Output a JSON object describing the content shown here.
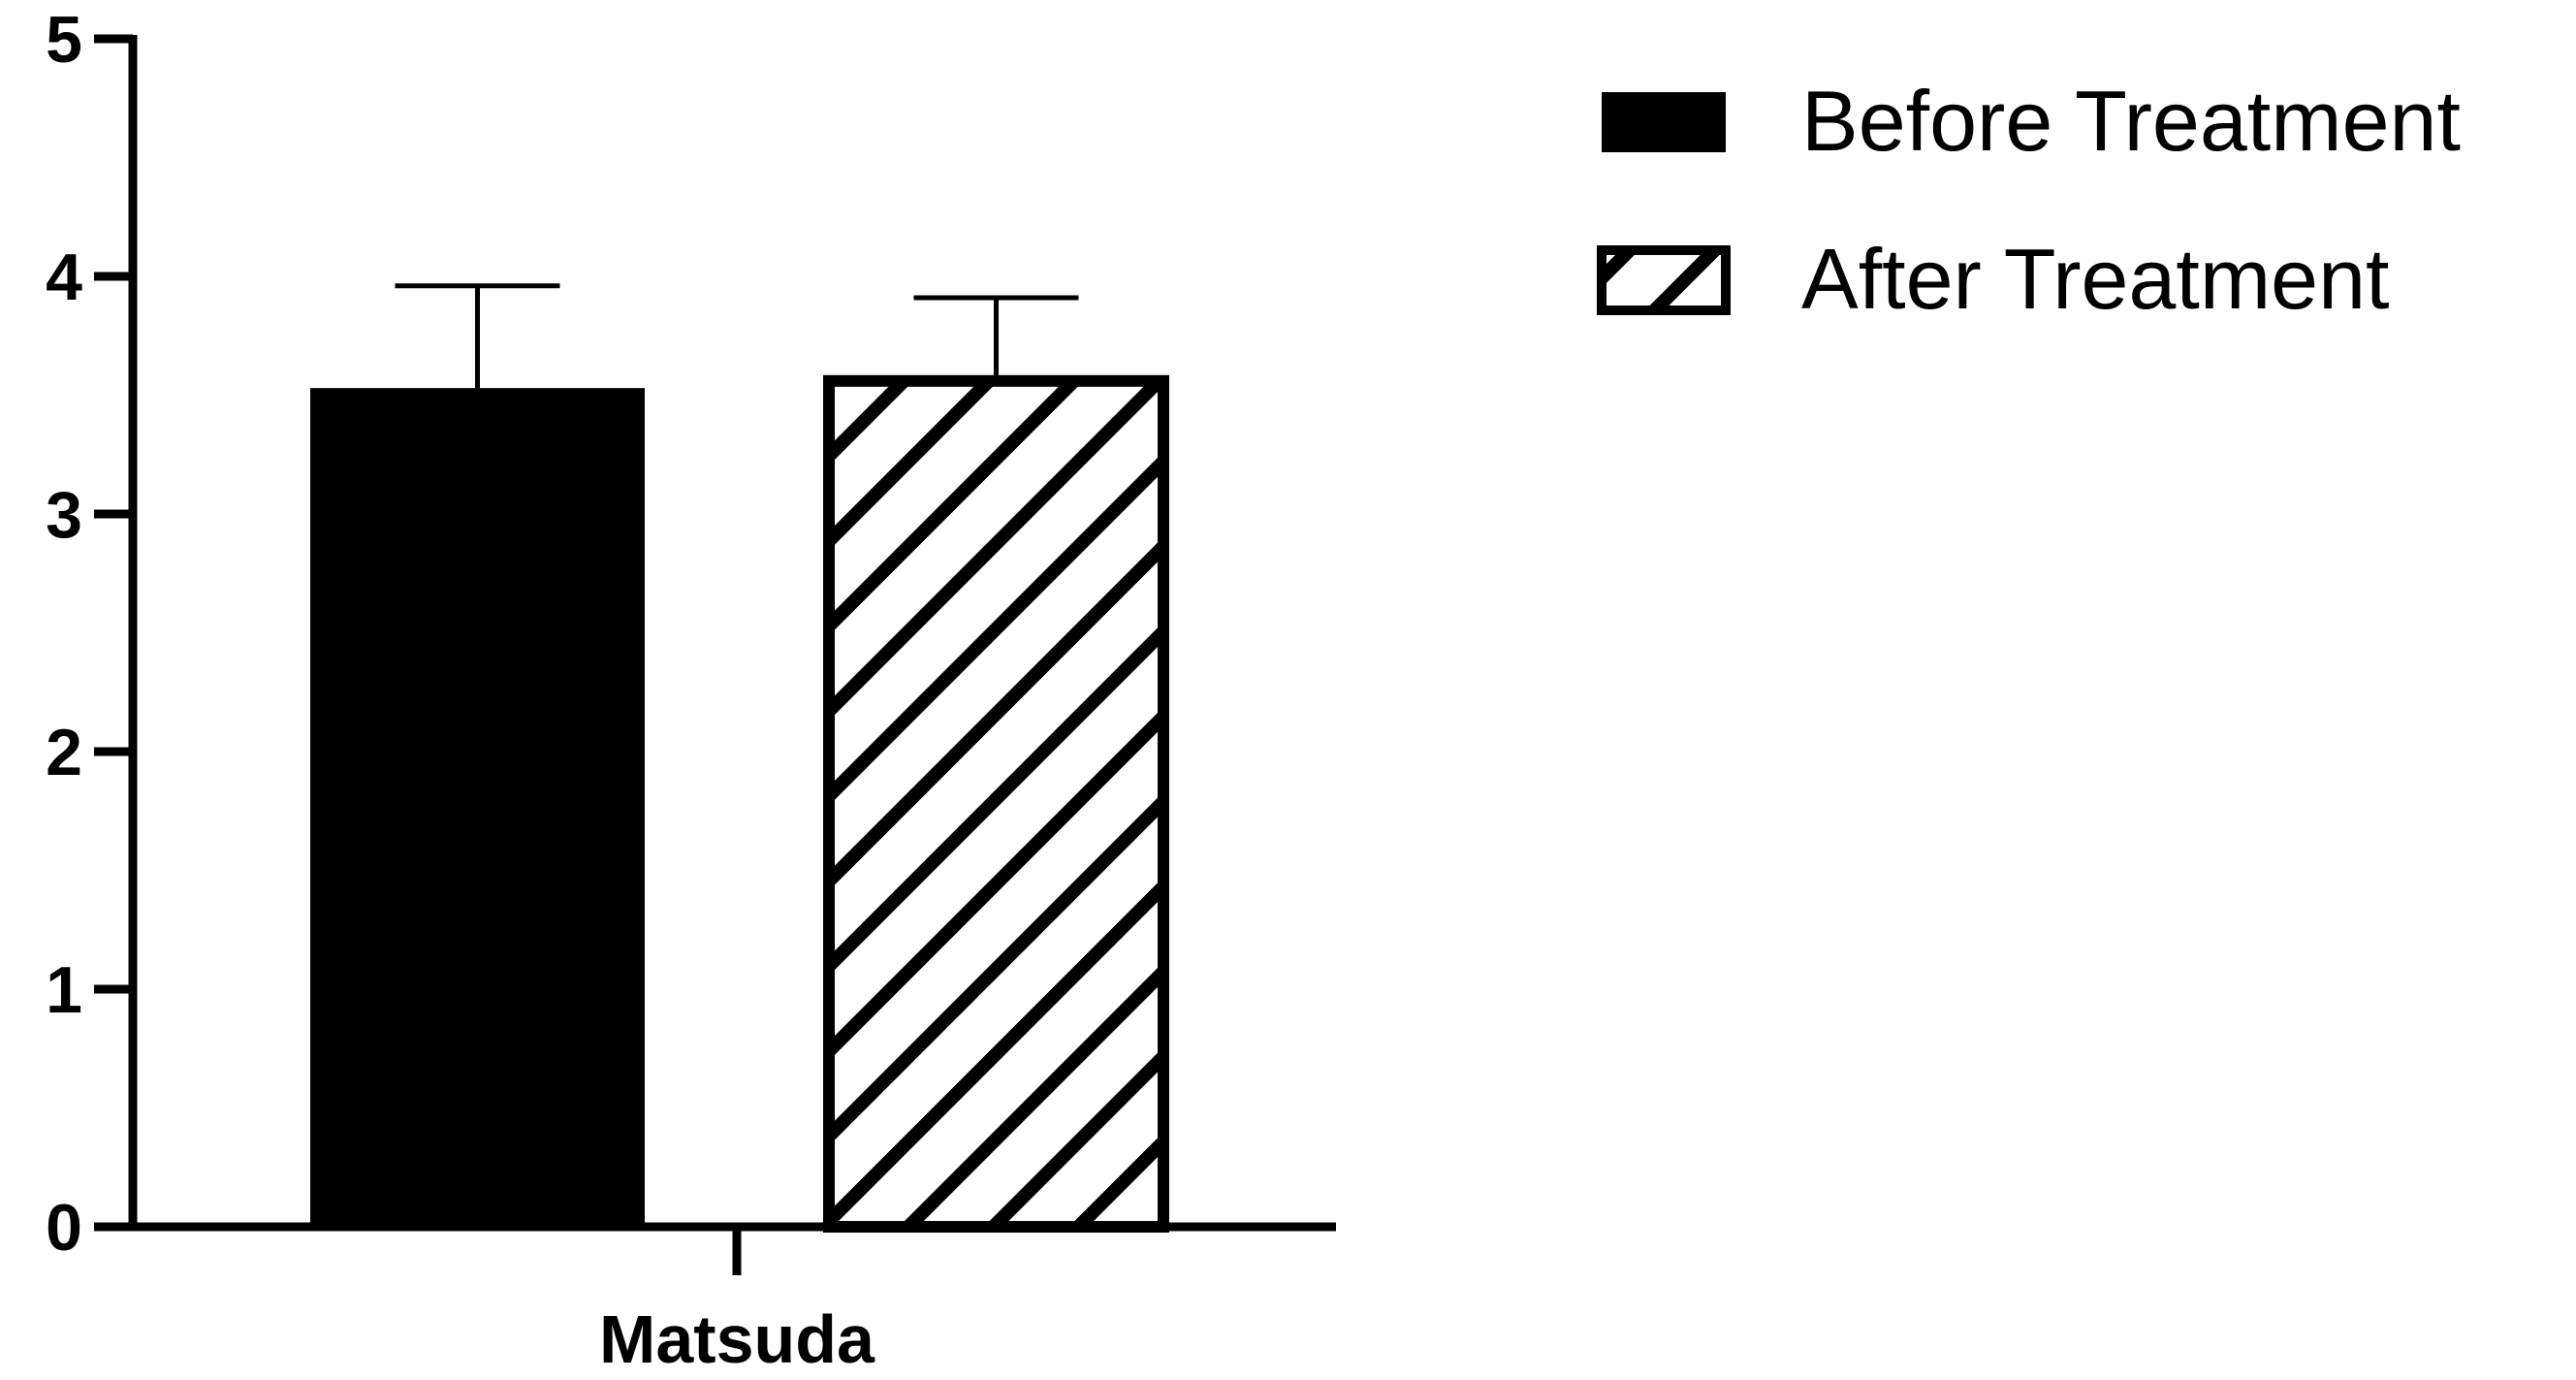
{
  "chart_data": {
    "type": "bar",
    "categories": [
      "Matsuda"
    ],
    "series": [
      {
        "name": "Before Treatment",
        "values": [
          3.53
        ],
        "error": [
          0.43
        ],
        "fill": "#000000",
        "pattern": "solid"
      },
      {
        "name": "After Treatment",
        "values": [
          3.56
        ],
        "error": [
          0.35
        ],
        "fill": "#ffffff",
        "pattern": "diagonal-hatch"
      }
    ],
    "title": "",
    "xlabel": "",
    "ylabel": "",
    "ylim": [
      0,
      5
    ],
    "yticks": [
      "0",
      "1",
      "2",
      "3",
      "4",
      "5"
    ],
    "grid": false,
    "legend_position": "top-right"
  }
}
